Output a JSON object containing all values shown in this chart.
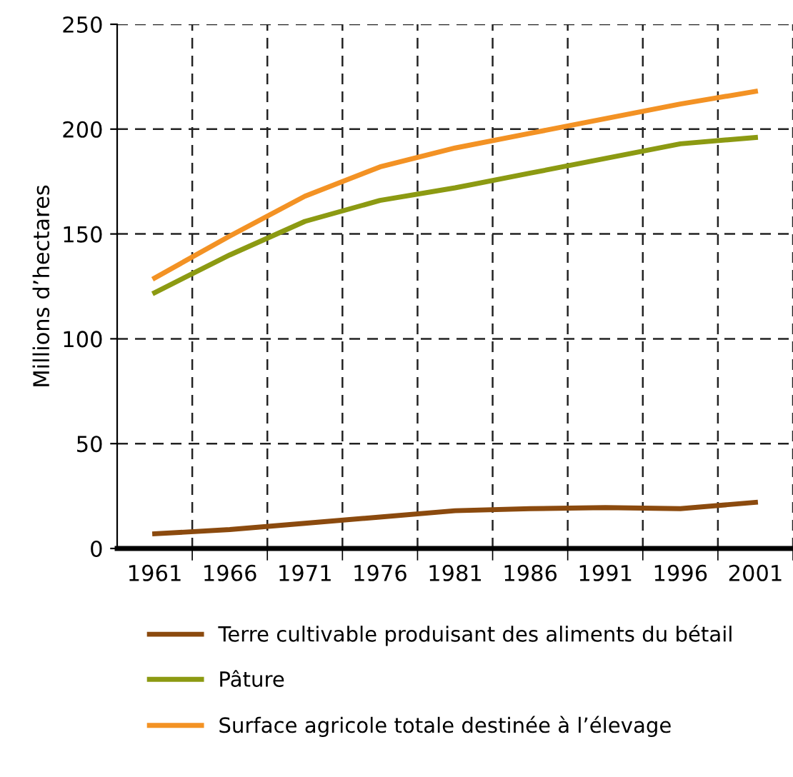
{
  "chart_data": {
    "type": "line",
    "ylabel": "Millions d’hectares",
    "x": [
      1961,
      1966,
      1971,
      1976,
      1981,
      1986,
      1991,
      1996,
      2001
    ],
    "series": [
      {
        "name": "Terre cultivable produisant des aliments du bétail",
        "color": "#8b4a0e",
        "values": [
          7,
          9,
          12,
          15,
          18,
          19,
          19.5,
          19,
          22
        ]
      },
      {
        "name": "Pâture",
        "color": "#8c9a12",
        "values": [
          122,
          140,
          156,
          166,
          172,
          179,
          186,
          193,
          196
        ]
      },
      {
        "name": "Surface agricole totale destinée à l’élevage",
        "color": "#f39224",
        "values": [
          129,
          149,
          168,
          182,
          191,
          198,
          205,
          212,
          218
        ]
      }
    ],
    "xlim": [
      1958.5,
      2003.5
    ],
    "xticks": [
      1961,
      1966,
      1971,
      1976,
      1981,
      1986,
      1991,
      1996,
      2001,
      {
        "value": 1963.5,
        "label": null
      },
      {
        "value": 1968.5,
        "label": null
      },
      {
        "value": 1973.5,
        "label": null
      },
      {
        "value": 1978.5,
        "label": null
      },
      {
        "value": 1983.5,
        "label": null
      },
      {
        "value": 1988.5,
        "label": null
      },
      {
        "value": 1993.5,
        "label": null
      },
      {
        "value": 1998.5,
        "label": null
      },
      {
        "value": 2003.5,
        "label": null
      }
    ],
    "ylim": [
      0,
      250
    ],
    "yticks": [
      0,
      50,
      100,
      150,
      200,
      250
    ],
    "grid": true,
    "legend": "bottom",
    "line_style": "solid",
    "marker": "none"
  }
}
